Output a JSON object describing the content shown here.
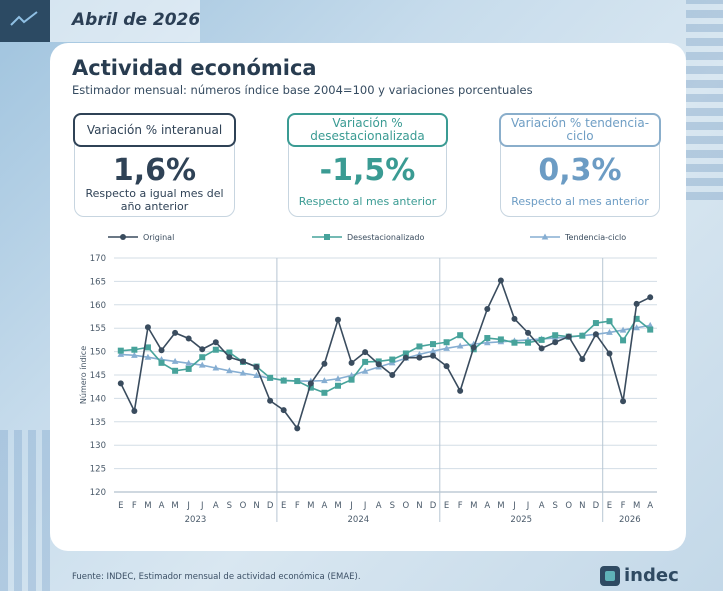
{
  "header": {
    "date": "Abril de 2026"
  },
  "title": "Actividad económica",
  "subtitle": "Estimador mensual: números índice base 2004=100 y variaciones porcentuales",
  "kpis": [
    {
      "label": "Variación % interanual",
      "value": "1,6%",
      "note": "Respecto a igual mes del año anterior"
    },
    {
      "label": "Variación % desestacionalizada",
      "value": "-1,5%",
      "note": "Respecto al mes anterior"
    },
    {
      "label": "Variación % tendencia-ciclo",
      "value": "0,3%",
      "note": "Respecto al mes anterior"
    }
  ],
  "footer": {
    "source": "Fuente: INDEC, Estimador mensual de actividad económica (EMAE).",
    "logo": "indec"
  },
  "chart_data": {
    "type": "line",
    "ylabel": "Número índice",
    "ylim": [
      120,
      170
    ],
    "yticks": [
      120,
      125,
      130,
      135,
      140,
      145,
      150,
      155,
      160,
      165,
      170
    ],
    "grid": true,
    "legend_position": "top",
    "categories": [
      "E",
      "F",
      "M",
      "A",
      "M",
      "J",
      "J",
      "A",
      "S",
      "O",
      "N",
      "D",
      "E",
      "F",
      "M",
      "A",
      "M",
      "J",
      "J",
      "A",
      "S",
      "O",
      "N",
      "D",
      "E",
      "F",
      "M",
      "A",
      "M",
      "J",
      "J",
      "A",
      "S",
      "O",
      "N",
      "D",
      "E",
      "F",
      "M",
      "A"
    ],
    "years": [
      {
        "label": "2023",
        "months": 12
      },
      {
        "label": "2024",
        "months": 12
      },
      {
        "label": "2025",
        "months": 12
      },
      {
        "label": "2026",
        "months": 4
      }
    ],
    "series": [
      {
        "name": "Original",
        "color": "#3a4c5e",
        "marker": "circle",
        "values": [
          143.2,
          137.3,
          155.2,
          150.3,
          154.0,
          152.8,
          150.5,
          152.0,
          148.8,
          147.9,
          146.7,
          139.5,
          137.5,
          133.6,
          143.2,
          147.4,
          156.8,
          147.6,
          149.9,
          147.3,
          145.0,
          148.7,
          148.7,
          149.1,
          146.9,
          141.6,
          150.9,
          159.1,
          165.2,
          157.0,
          154.0,
          150.7,
          152.0,
          153.2,
          148.4,
          153.7,
          149.6,
          139.4,
          160.2,
          161.6
        ]
      },
      {
        "name": "Desestacionalizado",
        "color": "#47a39b",
        "marker": "square",
        "values": [
          150.2,
          150.4,
          150.9,
          147.6,
          145.9,
          146.3,
          148.8,
          150.4,
          149.8,
          147.8,
          146.8,
          144.4,
          143.8,
          143.7,
          142.3,
          141.2,
          142.7,
          144.0,
          147.8,
          147.9,
          148.3,
          149.6,
          151.1,
          151.6,
          152.0,
          153.5,
          150.5,
          152.9,
          152.6,
          151.9,
          151.9,
          152.5,
          153.5,
          153.2,
          153.4,
          156.1,
          156.5,
          152.4,
          157.0,
          154.7
        ]
      },
      {
        "name": "Tendencia-ciclo",
        "color": "#86aed2",
        "marker": "triangle",
        "values": [
          149.4,
          149.2,
          148.8,
          148.3,
          147.9,
          147.5,
          147.1,
          146.5,
          145.9,
          145.4,
          144.9,
          144.3,
          143.9,
          143.7,
          143.7,
          143.8,
          144.2,
          144.9,
          145.8,
          146.7,
          147.6,
          148.6,
          149.4,
          150.1,
          150.7,
          151.2,
          151.6,
          151.9,
          152.1,
          152.3,
          152.5,
          152.7,
          152.9,
          153.1,
          153.4,
          153.7,
          154.1,
          154.6,
          155.1,
          155.6
        ]
      }
    ]
  }
}
